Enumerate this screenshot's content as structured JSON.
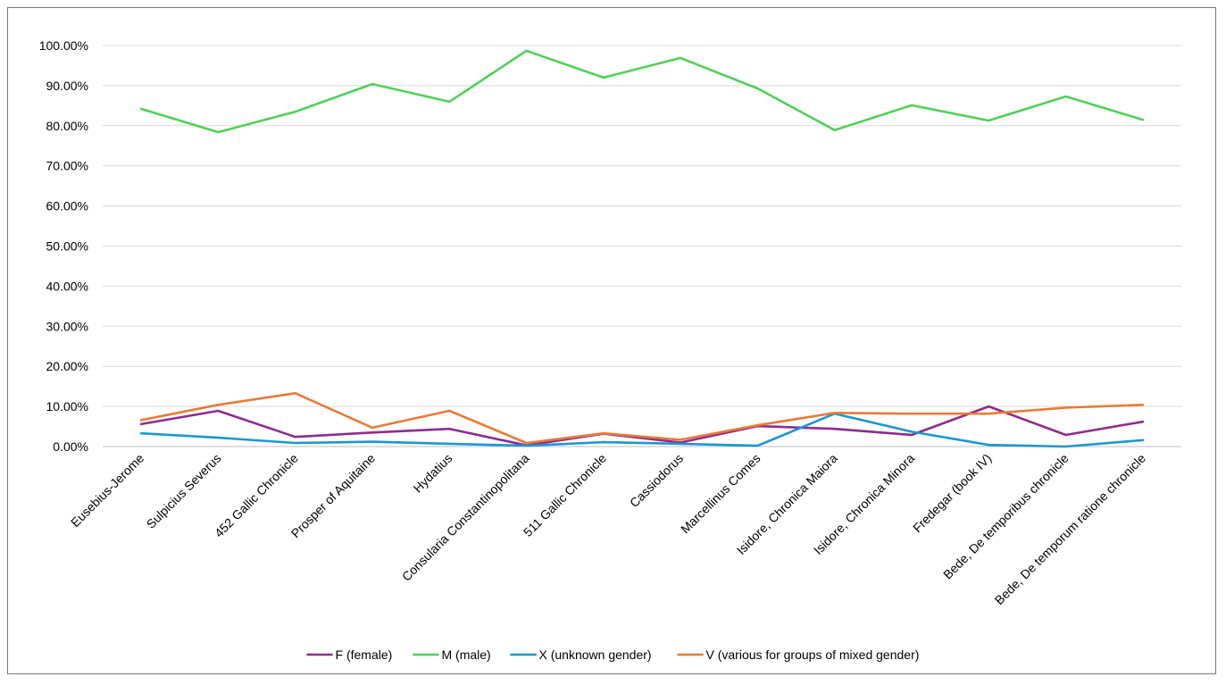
{
  "chart_data": {
    "type": "line",
    "title": "",
    "xlabel": "",
    "ylabel": "",
    "ylim": [
      0,
      100
    ],
    "ytick_values": [
      0,
      10,
      20,
      30,
      40,
      50,
      60,
      70,
      80,
      90,
      100
    ],
    "ytick_labels": [
      "0.00%",
      "10.00%",
      "20.00%",
      "30.00%",
      "40.00%",
      "50.00%",
      "60.00%",
      "70.00%",
      "80.00%",
      "90.00%",
      "100.00%"
    ],
    "grid": true,
    "legend_position": "bottom",
    "categories": [
      "Eusebius-Jerome",
      "Sulpicius Severus",
      "452 Gallic Chronicle",
      "Prosper of Aquitaine",
      "Hydatius",
      "Consularia Constantinopolitana",
      "511 Gallic Chronicle",
      "Cassiodorus",
      "Marcellinus Comes",
      "Isidore, Chronica Maiora",
      "Isidore, Chronica Minora",
      "Fredegar (book IV)",
      "Bede, De temporibus chronicle",
      "Bede, De temporum ratione chronicle"
    ],
    "series": [
      {
        "name": "F (female)",
        "color": "#8e2b8e",
        "values": [
          5.6,
          8.9,
          2.4,
          3.5,
          4.4,
          0.3,
          3.2,
          1.0,
          5.1,
          4.4,
          2.9,
          10.0,
          2.9,
          6.2
        ]
      },
      {
        "name": "M (male)",
        "color": "#4fd158",
        "values": [
          84.2,
          78.4,
          83.5,
          90.4,
          86.0,
          98.7,
          92.0,
          96.9,
          89.3,
          78.9,
          85.1,
          81.3,
          87.3,
          81.5
        ]
      },
      {
        "name": "X (unknown gender)",
        "color": "#1c97cf",
        "values": [
          3.3,
          2.2,
          0.9,
          1.2,
          0.7,
          0.2,
          1.1,
          0.7,
          0.2,
          8.2,
          3.7,
          0.4,
          0.0,
          1.6
        ]
      },
      {
        "name": "V (various for groups of mixed gender)",
        "color": "#ea7a35",
        "values": [
          6.6,
          10.4,
          13.3,
          4.7,
          8.9,
          0.9,
          3.3,
          1.7,
          5.3,
          8.4,
          8.2,
          8.2,
          9.7,
          10.4
        ]
      }
    ]
  }
}
